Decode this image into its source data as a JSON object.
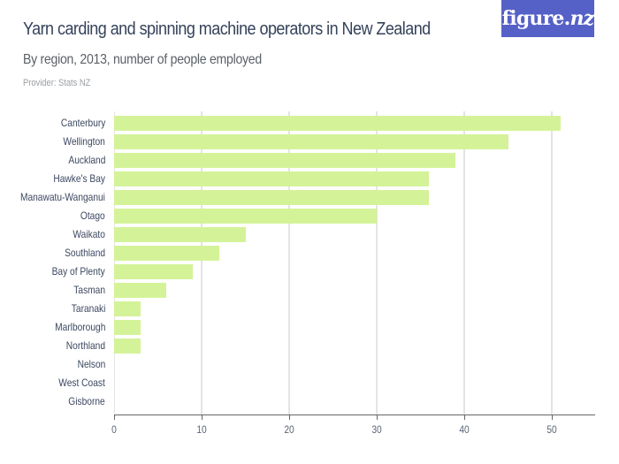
{
  "header": {
    "title": "Yarn carding and spinning machine operators in New Zealand",
    "subtitle": "By region, 2013, number of people employed",
    "provider": "Provider: Stats NZ"
  },
  "logo": {
    "text_main": "figure.",
    "text_nz": "nz"
  },
  "colors": {
    "bar": "#d4f399",
    "logo_bg": "#5561c7",
    "title": "#35425a",
    "gridline": "#e4e4e4"
  },
  "chart_data": {
    "type": "bar",
    "orientation": "horizontal",
    "title": "Yarn carding and spinning machine operators in New Zealand",
    "subtitle": "By region, 2013, number of people employed",
    "categories": [
      "Canterbury",
      "Wellington",
      "Auckland",
      "Hawke's Bay",
      "Manawatu-Wanganui",
      "Otago",
      "Waikato",
      "Southland",
      "Bay of Plenty",
      "Tasman",
      "Taranaki",
      "Marlborough",
      "Northland",
      "Nelson",
      "West Coast",
      "Gisborne"
    ],
    "values": [
      51,
      45,
      39,
      36,
      36,
      30,
      15,
      12,
      9,
      6,
      3,
      3,
      3,
      0,
      0,
      0
    ],
    "xlabel": "",
    "ylabel": "",
    "xlim": [
      0,
      55
    ],
    "xticks": [
      "0",
      "10",
      "20",
      "30",
      "40",
      "50"
    ],
    "grid": true,
    "legend": null
  }
}
